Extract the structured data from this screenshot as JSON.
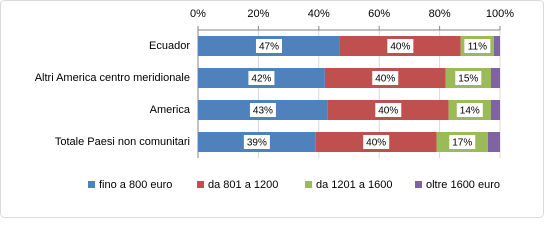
{
  "chart_data": {
    "type": "stacked_bar_horizontal",
    "categories": [
      "Ecuador",
      "Altri America centro meridionale",
      "America",
      "Totale Paesi non comunitari"
    ],
    "series": [
      {
        "name": "fino a 800 euro",
        "color": "#4f81bd",
        "values": [
          47,
          42,
          43,
          39
        ],
        "value_labels": [
          "47%",
          "42%",
          "43%",
          "39%"
        ]
      },
      {
        "name": "da 801 a 1200",
        "color": "#c0504d",
        "values": [
          40,
          40,
          40,
          40
        ],
        "value_labels": [
          "40%",
          "40%",
          "40%",
          "40%"
        ]
      },
      {
        "name": "da 1201 a 1600",
        "color": "#9bbb59",
        "values": [
          11,
          15,
          14,
          17
        ],
        "value_labels": [
          "11%",
          "15%",
          "14%",
          "17%"
        ]
      },
      {
        "name": "oltre 1600 euro",
        "color": "#8064a2",
        "values": [
          2,
          3,
          3,
          4
        ]
      }
    ],
    "xlim": [
      0,
      100
    ],
    "xticks": [
      {
        "value": 0,
        "label": "0%"
      },
      {
        "value": 20,
        "label": "20%"
      },
      {
        "value": 40,
        "label": "40%"
      },
      {
        "value": 60,
        "label": "60%"
      },
      {
        "value": 80,
        "label": "80%"
      },
      {
        "value": 100,
        "label": "100%"
      }
    ],
    "grid": true,
    "legend": "bottom"
  }
}
